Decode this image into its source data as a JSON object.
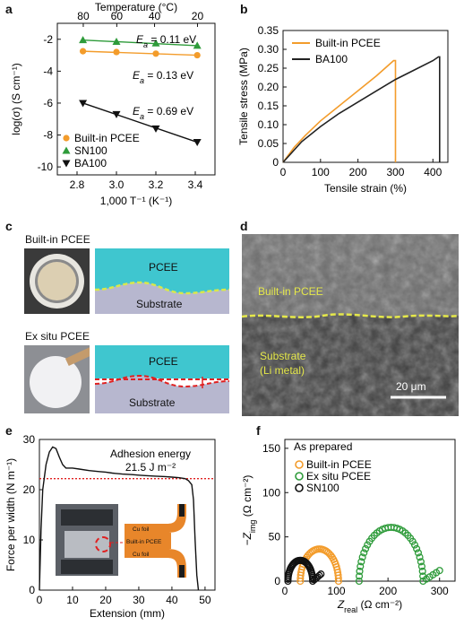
{
  "figure": {
    "panels": {
      "a": {
        "letter": "a"
      },
      "b": {
        "letter": "b"
      },
      "c": {
        "letter": "c"
      },
      "d": {
        "letter": "d"
      },
      "e": {
        "letter": "e"
      },
      "f": {
        "letter": "f"
      }
    },
    "c": {
      "builtin_title": "Built-in PCEE",
      "exsitu_title": "Ex situ PCEE",
      "pcee_label": "PCEE",
      "substrate_label": "Substrate"
    },
    "d": {
      "builtin_label": "Built-in PCEE",
      "substrate_label": "Substrate",
      "substrate_sub": "(Li metal)",
      "scale_label": "20 μm"
    },
    "e_inset": {
      "cu_top": "Cu foil",
      "middle": "Built-in PCEE",
      "cu_bottom": "Cu foil"
    }
  },
  "chart_data": [
    {
      "id": "a",
      "type": "scatter",
      "title": "",
      "xlabel": "1,000 T⁻¹ (K⁻¹)",
      "ylabel": "log(σ) (S cm⁻¹)",
      "x2label": "Temperature (°C)",
      "xlim": [
        2.7,
        3.5
      ],
      "ylim": [
        -10.5,
        -1
      ],
      "xticks": [
        "2.8",
        "3.0",
        "3.2",
        "3.4"
      ],
      "yticks": [
        "-2",
        "-4",
        "-6",
        "-8",
        "-10"
      ],
      "top_ticks": [
        "80",
        "60",
        "40",
        "20"
      ],
      "series": [
        {
          "name": "Built-in PCEE",
          "color": "#f39c2b",
          "marker": "circle",
          "x": [
            2.83,
            3.0,
            3.2,
            3.41
          ],
          "y": [
            -2.75,
            -2.8,
            -2.9,
            -3.0
          ]
        },
        {
          "name": "SN100",
          "color": "#2e9b3a",
          "marker": "triangle-up",
          "x": [
            2.83,
            3.0,
            3.2,
            3.41
          ],
          "y": [
            -2.05,
            -2.15,
            -2.25,
            -2.4
          ]
        },
        {
          "name": "BA100",
          "color": "#111111",
          "marker": "triangle-down",
          "x": [
            2.83,
            3.0,
            3.2,
            3.41
          ],
          "y": [
            -6.0,
            -6.7,
            -7.6,
            -8.45
          ]
        }
      ],
      "annotations": [
        {
          "prefix": "E",
          "sub": "a",
          "text": " = 0.11 eV"
        },
        {
          "prefix": "E",
          "sub": "a",
          "text": " = 0.13 eV"
        },
        {
          "prefix": "E",
          "sub": "a",
          "text": " = 0.69 eV"
        }
      ]
    },
    {
      "id": "b",
      "type": "line",
      "title": "",
      "xlabel": "Tensile strain (%)",
      "ylabel": "Tensile stress (MPa)",
      "xlim": [
        0,
        440
      ],
      "ylim": [
        0,
        0.35
      ],
      "xticks": [
        "0",
        "100",
        "200",
        "300",
        "400"
      ],
      "yticks": [
        "0",
        "0.05",
        "0.10",
        "0.15",
        "0.20",
        "0.25",
        "0.30",
        "0.35"
      ],
      "series": [
        {
          "name": "Built-in PCEE",
          "color": "#f39c2b",
          "x": [
            0,
            30,
            60,
            100,
            150,
            200,
            250,
            295,
            300,
            300
          ],
          "y": [
            0,
            0.04,
            0.072,
            0.11,
            0.15,
            0.19,
            0.23,
            0.27,
            0.27,
            0.0
          ]
        },
        {
          "name": "BA100",
          "color": "#222222",
          "x": [
            0,
            50,
            100,
            150,
            200,
            250,
            300,
            350,
            400,
            415,
            418,
            418
          ],
          "y": [
            0,
            0.055,
            0.095,
            0.13,
            0.16,
            0.19,
            0.22,
            0.245,
            0.27,
            0.28,
            0.28,
            0.0
          ]
        }
      ]
    },
    {
      "id": "e",
      "type": "line",
      "title": "",
      "xlabel": "Extension (mm)",
      "ylabel": "Force per width (N m⁻¹)",
      "xlim": [
        0,
        53
      ],
      "ylim": [
        0,
        30
      ],
      "xticks": [
        "0",
        "10",
        "20",
        "30",
        "40",
        "50"
      ],
      "yticks": [
        "0",
        "10",
        "20",
        "30"
      ],
      "annotation_title": "Adhesion energy",
      "annotation_value": "21.5 J m⁻²",
      "reference_line": 22.2,
      "series": [
        {
          "name": "force",
          "color": "#111111",
          "x": [
            0,
            0.5,
            1,
            2,
            3,
            4,
            5,
            6,
            7,
            8,
            10,
            12,
            15,
            18,
            20,
            22,
            25,
            28,
            30,
            32,
            35,
            38,
            40,
            42,
            44,
            45,
            46,
            46.5,
            47,
            47.5,
            48
          ],
          "y": [
            0,
            12,
            20,
            25,
            27.5,
            28.5,
            28.2,
            26.5,
            25,
            24.3,
            24.3,
            24.1,
            23.8,
            23.6,
            23.5,
            23.3,
            23.1,
            23.0,
            22.9,
            22.8,
            22.7,
            22.6,
            22.5,
            22.4,
            22.2,
            21.8,
            21.0,
            18.0,
            10.0,
            3.0,
            0
          ]
        }
      ]
    },
    {
      "id": "f",
      "type": "scatter",
      "title": "",
      "xlabel": "Z real (Ω cm⁻²)",
      "ylabel": "−Z img (Ω cm⁻²)",
      "xlim": [
        0,
        330
      ],
      "ylim": [
        0,
        160
      ],
      "xticks": [
        "0",
        "100",
        "200",
        "300"
      ],
      "yticks": [
        "0",
        "50",
        "100",
        "150"
      ],
      "legend_title": "As prepared",
      "series": [
        {
          "name": "Built-in PCEE",
          "color": "#f39c2b",
          "center": 67,
          "radius": 37,
          "tail": [
            0,
            0
          ]
        },
        {
          "name": "Ex situ PCEE",
          "color": "#2e9b3a",
          "center": 206,
          "radius": 62,
          "tail": [
            300,
            12
          ]
        },
        {
          "name": "SN100",
          "color": "#111111",
          "center": 30,
          "radius": 24,
          "tail": [
            70,
            8
          ]
        }
      ]
    }
  ]
}
